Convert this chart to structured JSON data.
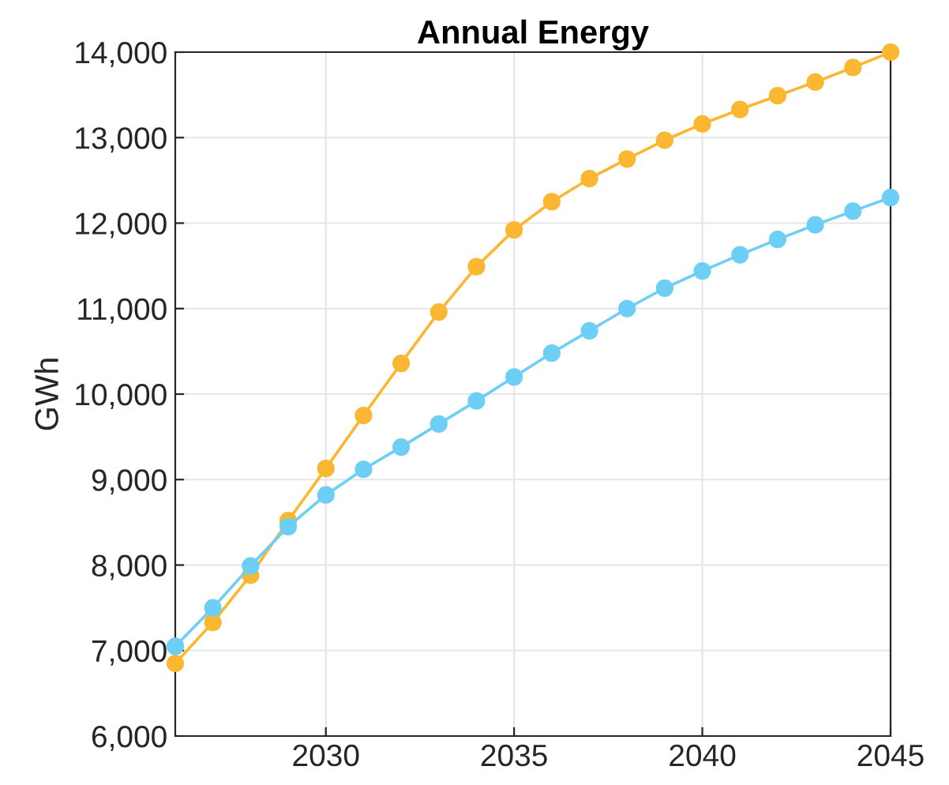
{
  "chart_data": {
    "type": "line",
    "title": "Annual Energy",
    "ylabel": "GWh",
    "x": [
      2026,
      2027,
      2028,
      2029,
      2030,
      2031,
      2032,
      2033,
      2034,
      2035,
      2036,
      2037,
      2038,
      2039,
      2040,
      2041,
      2042,
      2043,
      2044,
      2045
    ],
    "series": [
      {
        "color": "#fbb731",
        "values": [
          6850,
          7330,
          7880,
          8520,
          9130,
          9750,
          10360,
          10960,
          11490,
          11920,
          12250,
          12520,
          12750,
          12970,
          13160,
          13330,
          13490,
          13650,
          13820,
          14000
        ]
      },
      {
        "color": "#6dcff6",
        "values": [
          7050,
          7500,
          7990,
          8450,
          8820,
          9120,
          9380,
          9650,
          9920,
          10200,
          10480,
          10740,
          11000,
          11240,
          11440,
          11630,
          11810,
          11980,
          12140,
          12300
        ]
      }
    ],
    "xlim": [
      2026,
      2045
    ],
    "xticks": [
      2030,
      2035,
      2040,
      2045
    ],
    "ylim": [
      6000,
      14000
    ],
    "yticks": [
      {
        "value": 6000,
        "label": "6,000"
      },
      {
        "value": 7000,
        "label": "7,000"
      },
      {
        "value": 8000,
        "label": "8,000"
      },
      {
        "value": 9000,
        "label": "9,000"
      },
      {
        "value": 10000,
        "label": "10,000"
      },
      {
        "value": 11000,
        "label": "11,000"
      },
      {
        "value": 12000,
        "label": "12,000"
      },
      {
        "value": 13000,
        "label": "13,000"
      },
      {
        "value": 14000,
        "label": "14,000"
      }
    ],
    "grid": true,
    "marker": "circle",
    "line_style": "solid"
  }
}
